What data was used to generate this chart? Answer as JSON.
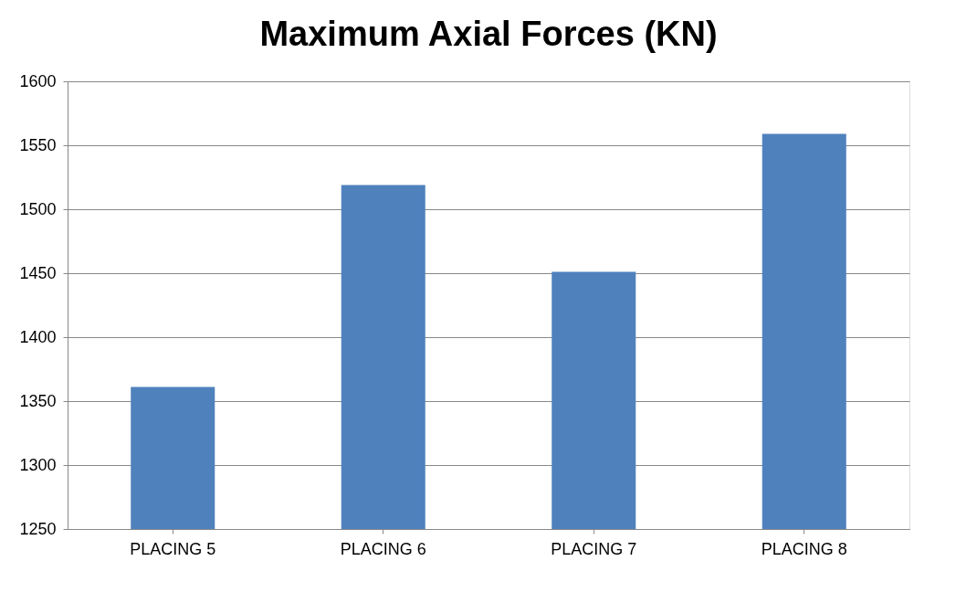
{
  "chart_data": {
    "type": "bar",
    "title": "Maximum Axial Forces (KN)",
    "categories": [
      "PLACING 5",
      "PLACING 6",
      "PLACING 7",
      "PLACING 8"
    ],
    "values": [
      1361,
      1519,
      1451,
      1559
    ],
    "color": "#4f81bd",
    "ylim": [
      1250,
      1600
    ],
    "yticks": [
      1250,
      1300,
      1350,
      1400,
      1450,
      1500,
      1550,
      1600
    ],
    "grid": "y"
  }
}
